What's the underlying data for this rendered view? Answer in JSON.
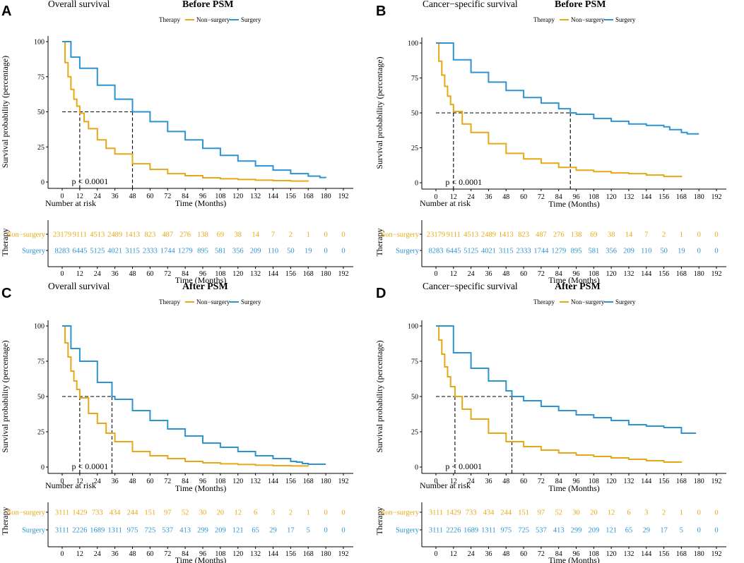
{
  "colors": {
    "non_surgery": "#E6A816",
    "surgery": "#2E94D1",
    "axis": "#000000"
  },
  "panels": [
    {
      "letter": "A",
      "title": "Overall survival",
      "subtitle": "Before PSM",
      "legend": {
        "title": "Therapy",
        "items": [
          "Non−surgery",
          "Surgery"
        ]
      },
      "p_text": "p < 0.0001",
      "risk_title": "Number at risk",
      "risk_ytitle": "Therapy",
      "risk_rows": [
        {
          "label": "Non−surgery",
          "values": [
            "23179",
            "9111",
            "4513",
            "2489",
            "1413",
            "823",
            "487",
            "276",
            "138",
            "69",
            "38",
            "14",
            "7",
            "2",
            "1",
            "0",
            "0"
          ]
        },
        {
          "label": "Surgery",
          "values": [
            "8283",
            "6445",
            "5125",
            "4021",
            "3115",
            "2333",
            "1744",
            "1279",
            "895",
            "581",
            "356",
            "209",
            "110",
            "50",
            "19",
            "0",
            "0"
          ]
        }
      ]
    },
    {
      "letter": "B",
      "title": "Cancer−specific survival",
      "subtitle": "Before PSM",
      "legend": {
        "title": "Therapy",
        "items": [
          "Non−surgery",
          "Surgery"
        ]
      },
      "p_text": "p < 0.0001",
      "risk_title": "Number at risk",
      "risk_ytitle": "Therapy",
      "risk_rows": [
        {
          "label": "Non−surgery",
          "values": [
            "23179",
            "9111",
            "4513",
            "2489",
            "1413",
            "823",
            "487",
            "276",
            "138",
            "69",
            "38",
            "14",
            "7",
            "2",
            "1",
            "0",
            "0"
          ]
        },
        {
          "label": "Surgery",
          "values": [
            "8283",
            "6445",
            "5125",
            "4021",
            "3115",
            "2333",
            "1744",
            "1279",
            "895",
            "581",
            "356",
            "209",
            "110",
            "50",
            "19",
            "0",
            "0"
          ]
        }
      ]
    },
    {
      "letter": "C",
      "title": "Overall survival",
      "subtitle": "After PSM",
      "legend": {
        "title": "Therapy",
        "items": [
          "Non−surgery",
          "Surgery"
        ]
      },
      "p_text": "p < 0.0001",
      "risk_title": "Number at risk",
      "risk_ytitle": "Therapy",
      "risk_rows": [
        {
          "label": "Non−surgery",
          "values": [
            "3111",
            "1429",
            "733",
            "434",
            "244",
            "151",
            "97",
            "52",
            "30",
            "20",
            "12",
            "6",
            "3",
            "2",
            "1",
            "0",
            "0"
          ]
        },
        {
          "label": "Surgery",
          "values": [
            "3111",
            "2226",
            "1689",
            "1311",
            "975",
            "725",
            "537",
            "413",
            "299",
            "209",
            "121",
            "65",
            "29",
            "17",
            "5",
            "0",
            "0"
          ]
        }
      ]
    },
    {
      "letter": "D",
      "title": "Cancer−specific survival",
      "subtitle": "After PSM",
      "legend": {
        "title": "Therapy",
        "items": [
          "Non−surgery",
          "Surgery"
        ]
      },
      "p_text": "p < 0.0001",
      "risk_title": "Number at risk",
      "risk_ytitle": "Therapy",
      "risk_rows": [
        {
          "label": "Non−surgery",
          "values": [
            "3111",
            "1429",
            "733",
            "434",
            "244",
            "151",
            "97",
            "52",
            "30",
            "20",
            "12",
            "6",
            "3",
            "2",
            "1",
            "0",
            "0"
          ]
        },
        {
          "label": "Surgery",
          "values": [
            "3111",
            "2226",
            "1689",
            "1311",
            "975",
            "725",
            "537",
            "413",
            "299",
            "209",
            "121",
            "65",
            "29",
            "17",
            "5",
            "0",
            "0"
          ]
        }
      ]
    }
  ],
  "chart_data": [
    {
      "type": "line",
      "title": "Overall survival — Before PSM",
      "xlabel": "Time (Months)",
      "ylabel": "Survival probability (percentage)",
      "xlim": [
        0,
        192
      ],
      "ylim": [
        0,
        100
      ],
      "x_ticks": [
        "0",
        "12",
        "24",
        "36",
        "48",
        "60",
        "72",
        "84",
        "96",
        "108",
        "120",
        "132",
        "144",
        "156",
        "168",
        "180",
        "192"
      ],
      "y_ticks": [
        "0",
        "25",
        "50",
        "75",
        "100"
      ],
      "median_survival": {
        "Non−surgery": 12,
        "Surgery": 48
      },
      "series": [
        {
          "name": "Non−surgery",
          "x": [
            0,
            2,
            4,
            6,
            8,
            10,
            12,
            15,
            18,
            24,
            30,
            36,
            48,
            60,
            72,
            84,
            96,
            108,
            120,
            132,
            144,
            156,
            168
          ],
          "y": [
            100,
            85,
            75,
            66,
            59,
            54,
            49,
            43,
            38,
            30,
            24,
            20,
            13,
            9,
            6,
            4.5,
            3,
            2.3,
            1.8,
            1.3,
            1,
            0.7,
            0.5
          ]
        },
        {
          "name": "Surgery",
          "x": [
            0,
            6,
            12,
            24,
            36,
            48,
            60,
            72,
            84,
            96,
            108,
            120,
            132,
            144,
            156,
            168,
            176,
            180
          ],
          "y": [
            100,
            89,
            81,
            69,
            59,
            50,
            43,
            36,
            30,
            24,
            19,
            15,
            11.5,
            8.5,
            6,
            4.2,
            3.2,
            3
          ]
        }
      ]
    },
    {
      "type": "line",
      "title": "Cancer−specific survival — Before PSM",
      "xlabel": "Time (Months)",
      "ylabel": "Survival probability (percentage)",
      "xlim": [
        0,
        192
      ],
      "ylim": [
        0,
        100
      ],
      "x_ticks": [
        "0",
        "12",
        "24",
        "36",
        "48",
        "60",
        "72",
        "84",
        "96",
        "108",
        "120",
        "132",
        "144",
        "156",
        "168",
        "180",
        "192"
      ],
      "y_ticks": [
        "0",
        "25",
        "50",
        "75",
        "100"
      ],
      "median_survival": {
        "Non−surgery": 12,
        "Surgery": 92
      },
      "series": [
        {
          "name": "Non−surgery",
          "x": [
            0,
            2,
            4,
            6,
            8,
            10,
            12,
            18,
            24,
            36,
            48,
            60,
            72,
            84,
            96,
            108,
            120,
            132,
            144,
            156,
            168
          ],
          "y": [
            100,
            87,
            77,
            69,
            62,
            56,
            51,
            42,
            36,
            28,
            21,
            17,
            14,
            11,
            9,
            8,
            7,
            6.5,
            5.5,
            4.5,
            4
          ]
        },
        {
          "name": "Surgery",
          "x": [
            0,
            12,
            24,
            36,
            48,
            60,
            72,
            84,
            92,
            96,
            108,
            120,
            132,
            144,
            156,
            160,
            164,
            168,
            172,
            180
          ],
          "y": [
            100,
            88,
            79,
            72,
            66,
            61,
            57,
            53,
            50,
            49,
            46,
            44,
            42,
            41,
            40,
            38,
            38,
            36,
            35,
            35
          ]
        }
      ]
    },
    {
      "type": "line",
      "title": "Overall survival — After PSM",
      "xlabel": "Time (Months)",
      "ylabel": "Survival probability (percentage)",
      "xlim": [
        0,
        192
      ],
      "ylim": [
        0,
        100
      ],
      "x_ticks": [
        "0",
        "12",
        "24",
        "36",
        "48",
        "60",
        "72",
        "84",
        "96",
        "108",
        "120",
        "132",
        "144",
        "156",
        "168",
        "180",
        "192"
      ],
      "y_ticks": [
        "0",
        "25",
        "50",
        "75",
        "100"
      ],
      "median_survival": {
        "Non−surgery": 12,
        "Surgery": 34
      },
      "series": [
        {
          "name": "Non−surgery",
          "x": [
            0,
            2,
            4,
            6,
            8,
            10,
            12,
            18,
            24,
            30,
            36,
            48,
            60,
            72,
            84,
            96,
            108,
            120,
            132,
            144,
            156,
            168
          ],
          "y": [
            100,
            88,
            78,
            68,
            61,
            55,
            49,
            38,
            31,
            24,
            18,
            11,
            8,
            6,
            4,
            3,
            2.3,
            1.8,
            1.3,
            1,
            0.8,
            0.6
          ]
        },
        {
          "name": "Surgery",
          "x": [
            0,
            6,
            12,
            24,
            34,
            36,
            48,
            60,
            72,
            84,
            96,
            108,
            120,
            132,
            144,
            156,
            160,
            164,
            168,
            176,
            180
          ],
          "y": [
            100,
            84,
            75,
            60,
            50,
            48,
            40,
            33,
            27,
            22,
            17,
            14,
            11,
            8,
            6,
            4,
            3.5,
            2.5,
            2,
            2,
            2
          ]
        }
      ]
    },
    {
      "type": "line",
      "title": "Cancer−specific survival — After PSM",
      "xlabel": "Time (Months)",
      "ylabel": "Survival probability (percentage)",
      "xlim": [
        0,
        192
      ],
      "ylim": [
        0,
        100
      ],
      "x_ticks": [
        "0",
        "12",
        "24",
        "36",
        "48",
        "60",
        "72",
        "84",
        "96",
        "108",
        "120",
        "132",
        "144",
        "156",
        "168",
        "180",
        "192"
      ],
      "y_ticks": [
        "0",
        "25",
        "50",
        "75",
        "100"
      ],
      "median_survival": {
        "Non−surgery": 13,
        "Surgery": 52
      },
      "series": [
        {
          "name": "Non−surgery",
          "x": [
            0,
            2,
            4,
            6,
            8,
            10,
            13,
            18,
            24,
            36,
            48,
            60,
            72,
            84,
            96,
            108,
            120,
            132,
            144,
            156,
            168
          ],
          "y": [
            100,
            90,
            80,
            71,
            64,
            57,
            50,
            41,
            34,
            24,
            18,
            14.5,
            12,
            10,
            8.5,
            7.5,
            6.5,
            5.5,
            4.5,
            3.5,
            3.2
          ]
        },
        {
          "name": "Surgery",
          "x": [
            0,
            12,
            24,
            36,
            48,
            52,
            60,
            72,
            84,
            96,
            108,
            120,
            132,
            144,
            156,
            160,
            164,
            168,
            172,
            176,
            178
          ],
          "y": [
            100,
            81,
            70,
            61,
            54,
            50,
            47,
            43,
            40,
            37,
            35,
            33,
            30,
            29,
            28,
            28,
            28,
            24,
            24,
            24,
            24
          ]
        }
      ]
    }
  ]
}
